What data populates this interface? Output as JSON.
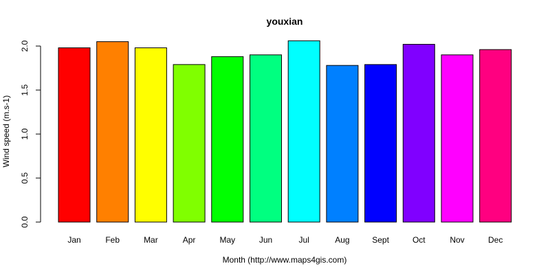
{
  "chart_data": {
    "type": "bar",
    "title": "youxian",
    "xlabel": "Month (http://www.maps4gis.com)",
    "ylabel": "Wind speed (m.s-1)",
    "categories": [
      "Jan",
      "Feb",
      "Mar",
      "Apr",
      "May",
      "Jun",
      "Jul",
      "Aug",
      "Sept",
      "Oct",
      "Nov",
      "Dec"
    ],
    "values": [
      1.98,
      2.05,
      1.98,
      1.79,
      1.88,
      1.9,
      2.06,
      1.78,
      1.79,
      2.02,
      1.9,
      1.96
    ],
    "colors": [
      "#FF0000",
      "#FF8000",
      "#FFFF00",
      "#80FF00",
      "#00FF00",
      "#00FF80",
      "#00FFFF",
      "#0080FF",
      "#0000FF",
      "#8000FF",
      "#FF00FF",
      "#FF0080"
    ],
    "yticks": [
      "0.0",
      "0.5",
      "1.0",
      "1.5",
      "2.0"
    ],
    "ylim": [
      0,
      2.0
    ],
    "grid": false,
    "legend": false
  }
}
